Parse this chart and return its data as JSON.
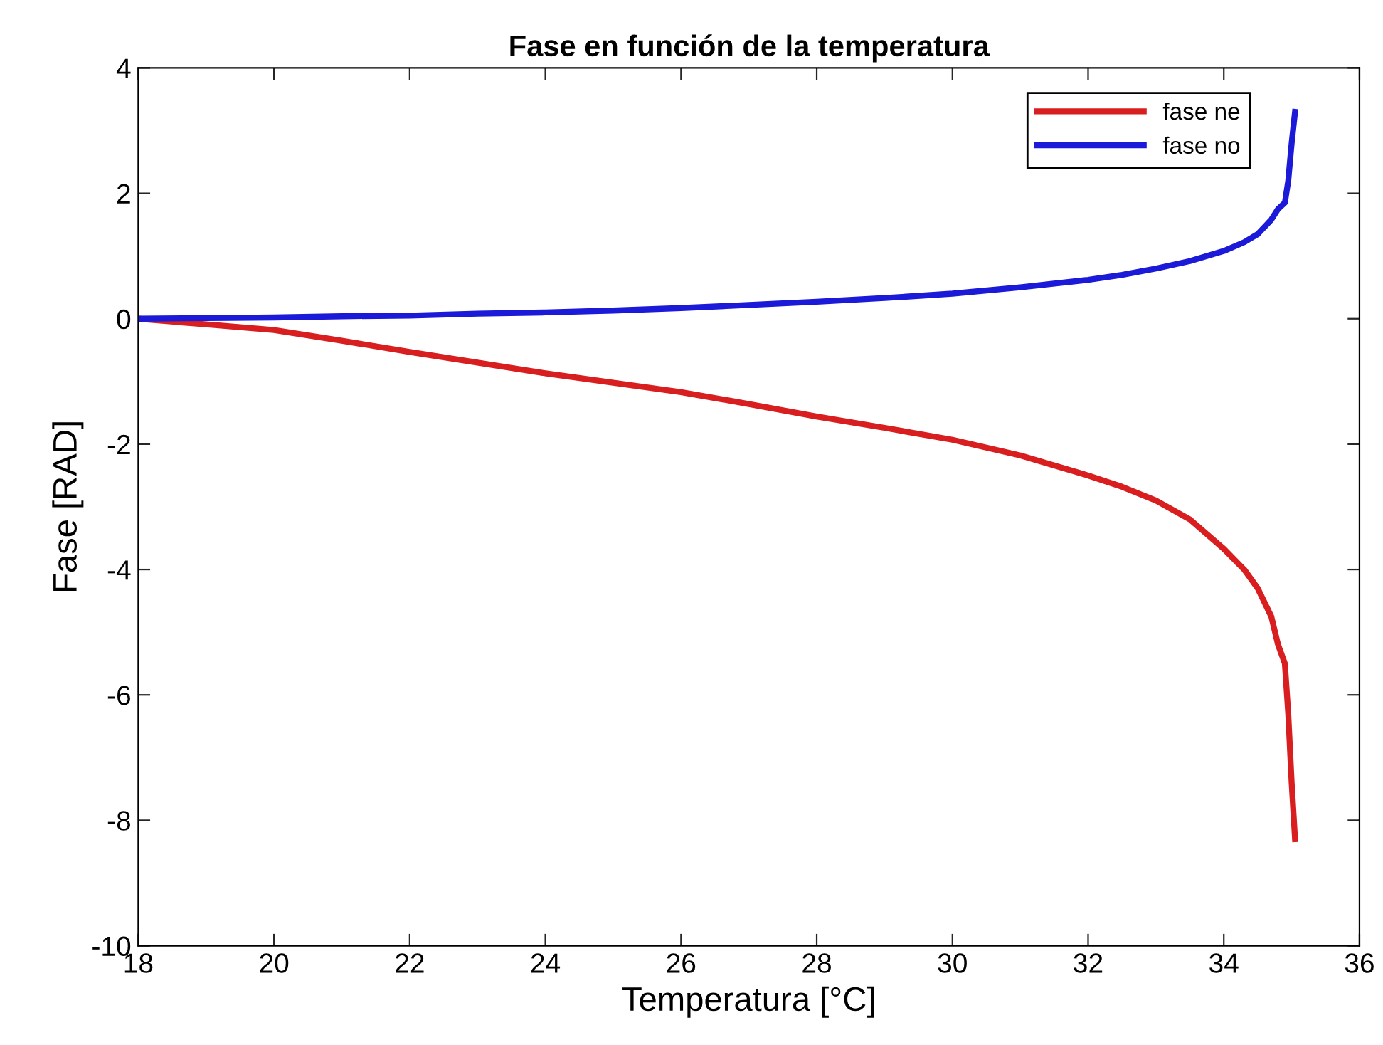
{
  "chart_data": {
    "type": "line",
    "title": "Fase en función de la temperatura",
    "xlabel": "Temperatura [°C]",
    "ylabel": "Fase [RAD]",
    "xlim": [
      18,
      36
    ],
    "xticks": [
      18,
      20,
      22,
      24,
      26,
      28,
      30,
      32,
      34,
      36
    ],
    "ylim": [
      -10,
      4
    ],
    "yticks": [
      -10,
      -8,
      -6,
      -4,
      -2,
      0,
      2,
      4
    ],
    "grid": false,
    "legend": "top right",
    "marker": "none",
    "line_style": "solid",
    "series": [
      {
        "name": "fase ne",
        "color": "#d81e1e",
        "x": [
          18,
          19,
          20,
          21,
          22,
          23,
          24,
          25,
          26,
          27,
          28,
          29,
          30,
          31,
          32,
          32.5,
          33,
          33.5,
          34,
          34.3,
          34.5,
          34.7,
          34.8,
          34.9,
          34.95,
          35.0,
          35.05
        ],
        "values": [
          0,
          -0.09,
          -0.18,
          -0.35,
          -0.53,
          -0.7,
          -0.87,
          -1.02,
          -1.17,
          -1.36,
          -1.56,
          -1.74,
          -1.93,
          -2.18,
          -2.5,
          -2.68,
          -2.9,
          -3.2,
          -3.67,
          -4.0,
          -4.3,
          -4.75,
          -5.2,
          -5.5,
          -6.3,
          -7.4,
          -8.3
        ]
      },
      {
        "name": "fase no",
        "color": "#1a1ad8",
        "x": [
          18,
          19,
          20,
          21,
          22,
          23,
          24,
          25,
          26,
          27,
          28,
          29,
          30,
          31,
          32,
          32.5,
          33,
          33.5,
          34,
          34.3,
          34.5,
          34.7,
          34.8,
          34.9,
          34.95,
          35.0,
          35.05
        ],
        "values": [
          0,
          0.01,
          0.02,
          0.04,
          0.05,
          0.08,
          0.1,
          0.13,
          0.17,
          0.22,
          0.27,
          0.33,
          0.4,
          0.5,
          0.62,
          0.7,
          0.8,
          0.92,
          1.08,
          1.22,
          1.35,
          1.58,
          1.75,
          1.85,
          2.2,
          2.8,
          3.3
        ]
      }
    ]
  }
}
